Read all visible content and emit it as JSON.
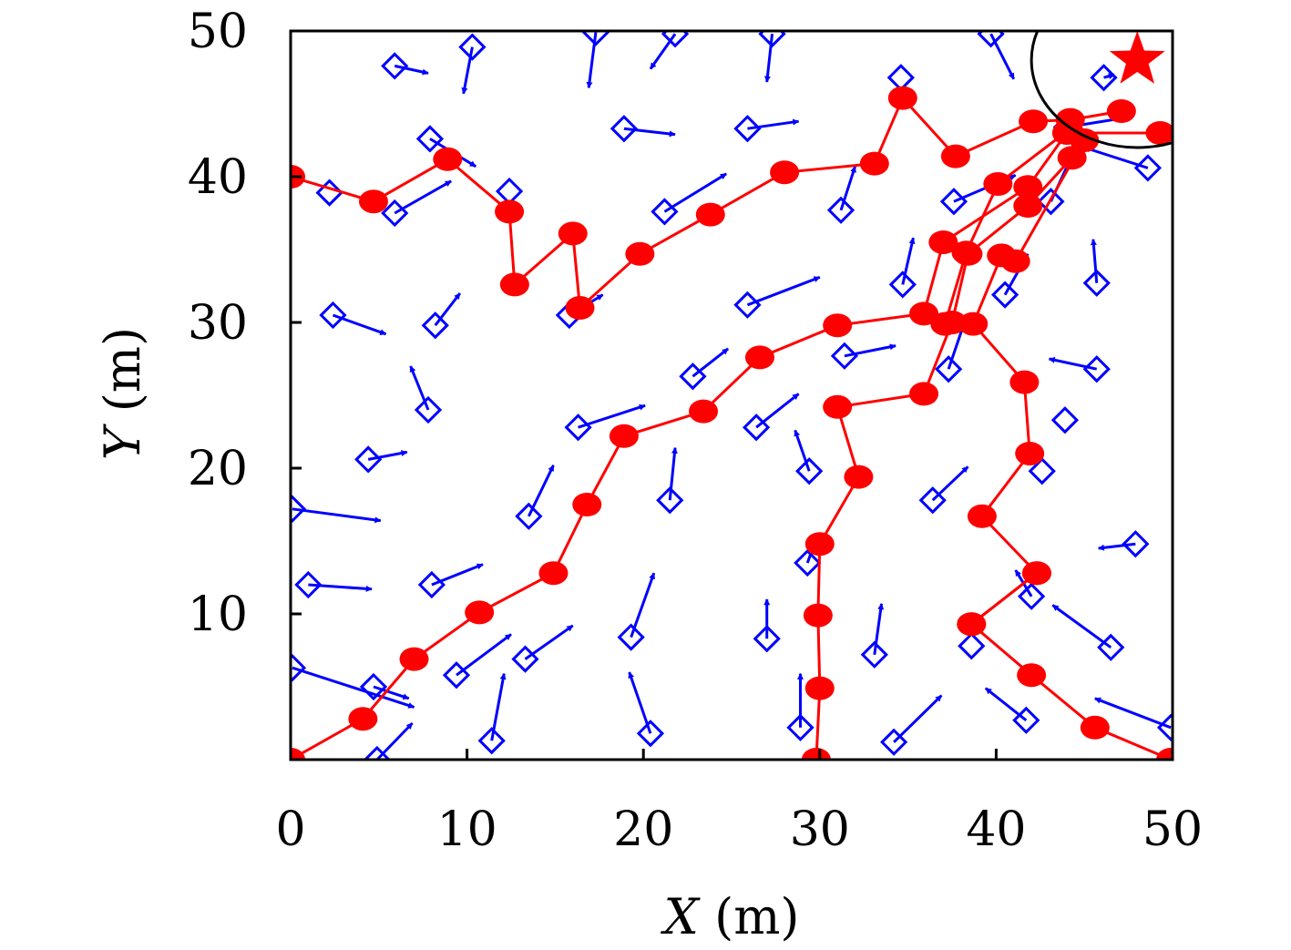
{
  "chart_data": {
    "type": "scatter",
    "title": "",
    "xlabel": {
      "var": "X",
      "unit": " (m)"
    },
    "ylabel": {
      "var": "Y",
      "unit": " (m)"
    },
    "xlim": [
      0,
      50
    ],
    "ylim": [
      0,
      50
    ],
    "xticks": [
      0,
      10,
      20,
      30,
      40,
      50
    ],
    "yticks": [
      10,
      20,
      30,
      40,
      50
    ],
    "grid": false,
    "colors": {
      "sensor": "#0000ff",
      "path": "#ff0000",
      "circle": "#000000",
      "star": "#ff0000"
    },
    "target": {
      "x": 48,
      "y": 48,
      "radius": 6
    },
    "sensors": [
      {
        "x": 5.9,
        "y": 47.6,
        "dx": 1.9,
        "dy": -0.5
      },
      {
        "x": 10.3,
        "y": 48.9,
        "dx": -0.5,
        "dy": -3.2
      },
      {
        "x": 17.3,
        "y": 49.9,
        "dx": -0.4,
        "dy": -3.8
      },
      {
        "x": 21.8,
        "y": 49.8,
        "dx": -1.4,
        "dy": -2.4
      },
      {
        "x": 27.3,
        "y": 49.8,
        "dx": -0.3,
        "dy": -3.3
      },
      {
        "x": 39.7,
        "y": 49.8,
        "dx": 1.3,
        "dy": -3.1
      },
      {
        "x": 46.1,
        "y": 46.8,
        "dx": 0.6,
        "dy": 0.2
      },
      {
        "x": 34.6,
        "y": 46.8,
        "dx": 0,
        "dy": 0
      },
      {
        "x": 7.9,
        "y": 42.6,
        "dx": 2.6,
        "dy": -1.9
      },
      {
        "x": 18.9,
        "y": 43.3,
        "dx": 2.9,
        "dy": -0.4
      },
      {
        "x": 25.9,
        "y": 43.3,
        "dx": 2.9,
        "dy": 0.5
      },
      {
        "x": 44.0,
        "y": 43.4,
        "dx": 3.6,
        "dy": 0.7
      },
      {
        "x": 48.6,
        "y": 40.6,
        "dx": -3.6,
        "dy": 1.4
      },
      {
        "x": 2.2,
        "y": 38.9,
        "dx": 0,
        "dy": 0
      },
      {
        "x": 5.9,
        "y": 37.5,
        "dx": 3.2,
        "dy": 2.2
      },
      {
        "x": 12.4,
        "y": 39.0,
        "dx": 0,
        "dy": 0
      },
      {
        "x": 21.2,
        "y": 37.6,
        "dx": 3.5,
        "dy": 2.6
      },
      {
        "x": 31.2,
        "y": 37.7,
        "dx": 0.8,
        "dy": 3.0
      },
      {
        "x": 37.6,
        "y": 38.3,
        "dx": 3.5,
        "dy": 1.8
      },
      {
        "x": 43.1,
        "y": 38.3,
        "dx": 1.3,
        "dy": 3.4
      },
      {
        "x": 34.7,
        "y": 32.6,
        "dx": 0.6,
        "dy": 3.2
      },
      {
        "x": 45.7,
        "y": 32.7,
        "dx": -0.2,
        "dy": 3.0
      },
      {
        "x": 40.5,
        "y": 31.9,
        "dx": 1.3,
        "dy": 2.8
      },
      {
        "x": 2.4,
        "y": 30.5,
        "dx": 3.0,
        "dy": -1.3
      },
      {
        "x": 8.2,
        "y": 29.8,
        "dx": 1.4,
        "dy": 2.2
      },
      {
        "x": 15.8,
        "y": 30.5,
        "dx": 1.9,
        "dy": 1.4
      },
      {
        "x": 25.9,
        "y": 31.2,
        "dx": 4.1,
        "dy": 1.9
      },
      {
        "x": 31.4,
        "y": 27.7,
        "dx": 2.9,
        "dy": 0.7
      },
      {
        "x": 37.3,
        "y": 26.8,
        "dx": 0.9,
        "dy": 3.2
      },
      {
        "x": 45.7,
        "y": 26.8,
        "dx": -2.7,
        "dy": 0.7
      },
      {
        "x": 7.8,
        "y": 24.0,
        "dx": -1.0,
        "dy": 3.0
      },
      {
        "x": 22.8,
        "y": 26.3,
        "dx": 2.0,
        "dy": 1.9
      },
      {
        "x": 16.3,
        "y": 22.8,
        "dx": 3.8,
        "dy": 1.5
      },
      {
        "x": 26.4,
        "y": 22.8,
        "dx": 2.4,
        "dy": 2.3
      },
      {
        "x": 43.9,
        "y": 23.3,
        "dx": 0,
        "dy": 0
      },
      {
        "x": 4.4,
        "y": 20.6,
        "dx": 2.2,
        "dy": 0.5
      },
      {
        "x": 29.4,
        "y": 19.8,
        "dx": -0.8,
        "dy": 2.8
      },
      {
        "x": 42.6,
        "y": 19.8,
        "dx": 0,
        "dy": 0
      },
      {
        "x": 21.5,
        "y": 17.8,
        "dx": 0.3,
        "dy": 3.6
      },
      {
        "x": 36.4,
        "y": 17.8,
        "dx": 2.0,
        "dy": 2.3
      },
      {
        "x": 0.1,
        "y": 17.2,
        "dx": 5.0,
        "dy": -0.8
      },
      {
        "x": 13.5,
        "y": 16.7,
        "dx": 1.4,
        "dy": 3.5
      },
      {
        "x": 47.9,
        "y": 14.8,
        "dx": -2.1,
        "dy": -0.3
      },
      {
        "x": 1.0,
        "y": 12.0,
        "dx": 3.6,
        "dy": -0.3
      },
      {
        "x": 8.0,
        "y": 12.0,
        "dx": 2.9,
        "dy": 1.4
      },
      {
        "x": 29.3,
        "y": 13.5,
        "dx": 0.6,
        "dy": 2.0
      },
      {
        "x": 42.0,
        "y": 11.2,
        "dx": -0.9,
        "dy": 1.8
      },
      {
        "x": 19.3,
        "y": 8.4,
        "dx": 1.3,
        "dy": 4.4
      },
      {
        "x": 27.0,
        "y": 8.3,
        "dx": 0,
        "dy": 2.7
      },
      {
        "x": 33.1,
        "y": 7.2,
        "dx": 0.4,
        "dy": 3.5
      },
      {
        "x": 46.5,
        "y": 7.7,
        "dx": -3.3,
        "dy": 2.9
      },
      {
        "x": 9.4,
        "y": 5.8,
        "dx": 3.1,
        "dy": 2.8
      },
      {
        "x": 13.3,
        "y": 6.9,
        "dx": 2.7,
        "dy": 2.3
      },
      {
        "x": 38.6,
        "y": 7.8,
        "dx": 0,
        "dy": 0
      },
      {
        "x": 0.1,
        "y": 6.3,
        "dx": 6.9,
        "dy": -2.7
      },
      {
        "x": 4.7,
        "y": 5.0,
        "dx": 2.0,
        "dy": -0.8
      },
      {
        "x": 11.4,
        "y": 1.3,
        "dx": 0.7,
        "dy": 4.6
      },
      {
        "x": 20.4,
        "y": 1.8,
        "dx": -1.2,
        "dy": 4.2
      },
      {
        "x": 28.9,
        "y": 2.2,
        "dx": 0,
        "dy": 3.7
      },
      {
        "x": 34.2,
        "y": 1.2,
        "dx": 2.7,
        "dy": 3.2
      },
      {
        "x": 41.7,
        "y": 2.7,
        "dx": -2.3,
        "dy": 2.2
      },
      {
        "x": 49.9,
        "y": 2.2,
        "dx": -4.3,
        "dy": 2.0
      },
      {
        "x": 4.9,
        "y": 0.0,
        "dx": 2.0,
        "dy": 2.5
      }
    ],
    "paths": [
      [
        [
          0,
          40.0
        ],
        [
          4.7,
          38.3
        ],
        [
          8.9,
          41.2
        ],
        [
          12.4,
          37.6
        ],
        [
          12.7,
          32.6
        ],
        [
          16.0,
          36.1
        ],
        [
          16.4,
          31.0
        ],
        [
          19.8,
          34.7
        ],
        [
          23.8,
          37.4
        ],
        [
          28.0,
          40.3
        ],
        [
          33.1,
          40.9
        ],
        [
          34.7,
          45.4
        ],
        [
          37.7,
          41.4
        ],
        [
          42.1,
          43.8
        ],
        [
          44.2,
          43.9
        ],
        [
          47.1,
          44.5
        ]
      ],
      [
        [
          0,
          0
        ],
        [
          4.1,
          2.8
        ],
        [
          7.0,
          6.9
        ],
        [
          10.7,
          10.1
        ],
        [
          14.9,
          12.8
        ],
        [
          16.8,
          17.5
        ],
        [
          18.9,
          22.2
        ],
        [
          23.4,
          23.9
        ],
        [
          26.6,
          27.6
        ],
        [
          31.0,
          29.8
        ],
        [
          35.9,
          30.6
        ],
        [
          37.0,
          35.5
        ],
        [
          41.8,
          39.3
        ],
        [
          44.0,
          43.0
        ],
        [
          49.3,
          43.0
        ]
      ],
      [
        [
          29.8,
          0
        ],
        [
          30.0,
          4.9
        ],
        [
          29.9,
          9.9
        ],
        [
          30.0,
          14.8
        ],
        [
          32.2,
          19.4
        ],
        [
          31.0,
          24.2
        ],
        [
          35.9,
          25.1
        ],
        [
          37.5,
          30.0
        ],
        [
          38.4,
          34.7
        ],
        [
          41.8,
          38.0
        ],
        [
          44.3,
          41.3
        ]
      ],
      [
        [
          49.9,
          0
        ],
        [
          45.6,
          2.2
        ],
        [
          42.0,
          5.8
        ],
        [
          38.6,
          9.3
        ],
        [
          42.3,
          12.8
        ],
        [
          39.2,
          16.7
        ],
        [
          41.9,
          21.0
        ],
        [
          41.6,
          25.9
        ],
        [
          38.7,
          29.9
        ],
        [
          40.3,
          34.6
        ],
        [
          41.1,
          34.2
        ],
        [
          45.0,
          42.5
        ]
      ],
      [
        [
          38.6,
          9.3
        ],
        [
          42.3,
          12.8
        ]
      ],
      [
        [
          37.1,
          29.9
        ],
        [
          38.3,
          34.8
        ],
        [
          40.1,
          39.5
        ],
        [
          44.1,
          43.2
        ]
      ]
    ]
  }
}
